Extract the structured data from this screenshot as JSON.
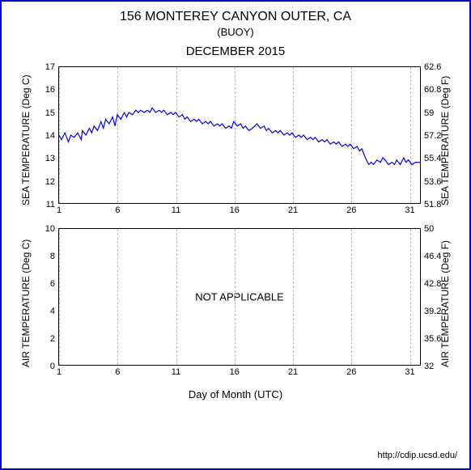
{
  "header": {
    "title": "156 MONTEREY CANYON OUTER, CA",
    "subtitle": "(BUOY)",
    "month": "DECEMBER 2015"
  },
  "credit": "http://cdip.ucsd.edu/",
  "xaxis": {
    "label": "Day of Month (UTC)",
    "min": 1,
    "max": 32,
    "ticks": [
      1,
      6,
      11,
      16,
      21,
      26,
      31
    ]
  },
  "sea_chart": {
    "type": "line",
    "ylabel_left": "SEA TEMPERATURE (Deg C)",
    "ylabel_right": "SEA TEMPERATURE (Deg F)",
    "ylim_left": [
      11,
      17
    ],
    "yticks_left": [
      11,
      12,
      13,
      14,
      15,
      16,
      17
    ],
    "yticks_right": [
      51.8,
      53.6,
      55.4,
      57.2,
      59,
      60.8,
      62.6
    ],
    "line_color": "#0000ee",
    "line_width": 1.2,
    "grid_color": "#bbbbbb",
    "data": [
      [
        1,
        14.0
      ],
      [
        1.2,
        13.8
      ],
      [
        1.5,
        14.1
      ],
      [
        1.8,
        13.7
      ],
      [
        2,
        14.0
      ],
      [
        2.3,
        13.9
      ],
      [
        2.6,
        14.1
      ],
      [
        2.9,
        13.8
      ],
      [
        3,
        14.2
      ],
      [
        3.3,
        14.0
      ],
      [
        3.6,
        14.3
      ],
      [
        3.8,
        14.1
      ],
      [
        4,
        14.4
      ],
      [
        4.3,
        14.2
      ],
      [
        4.6,
        14.6
      ],
      [
        4.8,
        14.3
      ],
      [
        5,
        14.7
      ],
      [
        5.3,
        14.5
      ],
      [
        5.6,
        14.8
      ],
      [
        5.8,
        14.4
      ],
      [
        6,
        14.9
      ],
      [
        6.3,
        14.7
      ],
      [
        6.6,
        15.0
      ],
      [
        6.8,
        14.8
      ],
      [
        7,
        15.0
      ],
      [
        7.3,
        14.9
      ],
      [
        7.6,
        15.1
      ],
      [
        7.8,
        15.0
      ],
      [
        8,
        15.1
      ],
      [
        8.3,
        15.0
      ],
      [
        8.6,
        15.1
      ],
      [
        8.8,
        15.0
      ],
      [
        9,
        15.2
      ],
      [
        9.3,
        15.0
      ],
      [
        9.6,
        15.1
      ],
      [
        9.8,
        15.0
      ],
      [
        10,
        15.1
      ],
      [
        10.3,
        14.9
      ],
      [
        10.6,
        15.0
      ],
      [
        10.8,
        14.9
      ],
      [
        11,
        15.0
      ],
      [
        11.3,
        14.8
      ],
      [
        11.6,
        14.9
      ],
      [
        11.8,
        14.7
      ],
      [
        12,
        14.8
      ],
      [
        12.3,
        14.6
      ],
      [
        12.6,
        14.7
      ],
      [
        12.8,
        14.6
      ],
      [
        13,
        14.7
      ],
      [
        13.3,
        14.5
      ],
      [
        13.6,
        14.6
      ],
      [
        13.8,
        14.5
      ],
      [
        14,
        14.6
      ],
      [
        14.3,
        14.4
      ],
      [
        14.6,
        14.5
      ],
      [
        14.8,
        14.4
      ],
      [
        15,
        14.5
      ],
      [
        15.3,
        14.3
      ],
      [
        15.6,
        14.4
      ],
      [
        15.8,
        14.3
      ],
      [
        16,
        14.6
      ],
      [
        16.3,
        14.4
      ],
      [
        16.6,
        14.5
      ],
      [
        16.8,
        14.3
      ],
      [
        17,
        14.4
      ],
      [
        17.3,
        14.2
      ],
      [
        17.6,
        14.3
      ],
      [
        17.8,
        14.4
      ],
      [
        18,
        14.5
      ],
      [
        18.3,
        14.3
      ],
      [
        18.6,
        14.4
      ],
      [
        18.8,
        14.2
      ],
      [
        19,
        14.3
      ],
      [
        19.3,
        14.1
      ],
      [
        19.6,
        14.2
      ],
      [
        19.8,
        14.1
      ],
      [
        20,
        14.2
      ],
      [
        20.3,
        14.0
      ],
      [
        20.6,
        14.1
      ],
      [
        20.8,
        14.0
      ],
      [
        21,
        14.1
      ],
      [
        21.3,
        13.9
      ],
      [
        21.6,
        14.0
      ],
      [
        21.8,
        13.9
      ],
      [
        22,
        14.0
      ],
      [
        22.3,
        13.8
      ],
      [
        22.6,
        13.9
      ],
      [
        22.8,
        13.8
      ],
      [
        23,
        13.9
      ],
      [
        23.3,
        13.7
      ],
      [
        23.6,
        13.8
      ],
      [
        23.8,
        13.7
      ],
      [
        24,
        13.8
      ],
      [
        24.3,
        13.6
      ],
      [
        24.6,
        13.7
      ],
      [
        24.8,
        13.6
      ],
      [
        25,
        13.7
      ],
      [
        25.3,
        13.5
      ],
      [
        25.6,
        13.6
      ],
      [
        25.8,
        13.5
      ],
      [
        26,
        13.6
      ],
      [
        26.3,
        13.4
      ],
      [
        26.6,
        13.5
      ],
      [
        26.8,
        13.3
      ],
      [
        27,
        13.4
      ],
      [
        27.3,
        13.0
      ],
      [
        27.6,
        12.7
      ],
      [
        27.8,
        12.8
      ],
      [
        28,
        12.7
      ],
      [
        28.3,
        12.9
      ],
      [
        28.6,
        12.8
      ],
      [
        28.8,
        13.0
      ],
      [
        29,
        12.9
      ],
      [
        29.3,
        12.7
      ],
      [
        29.6,
        12.8
      ],
      [
        29.8,
        12.7
      ],
      [
        30,
        12.9
      ],
      [
        30.3,
        12.7
      ],
      [
        30.6,
        13.0
      ],
      [
        30.8,
        12.8
      ],
      [
        31,
        12.9
      ],
      [
        31.3,
        12.7
      ],
      [
        31.6,
        12.8
      ],
      [
        32,
        12.8
      ]
    ]
  },
  "air_chart": {
    "type": "line",
    "ylabel_left": "AIR TEMPERATURE (Deg C)",
    "ylabel_right": "AIR TEMPERATURE (Deg F)",
    "ylim_left": [
      0,
      10
    ],
    "yticks_left": [
      0,
      2,
      4,
      6,
      8,
      10
    ],
    "yticks_right": [
      32,
      35.6,
      39.2,
      42.8,
      46.4,
      50
    ],
    "overlay_text": "NOT APPLICABLE",
    "grid_color": "#bbbbbb"
  }
}
